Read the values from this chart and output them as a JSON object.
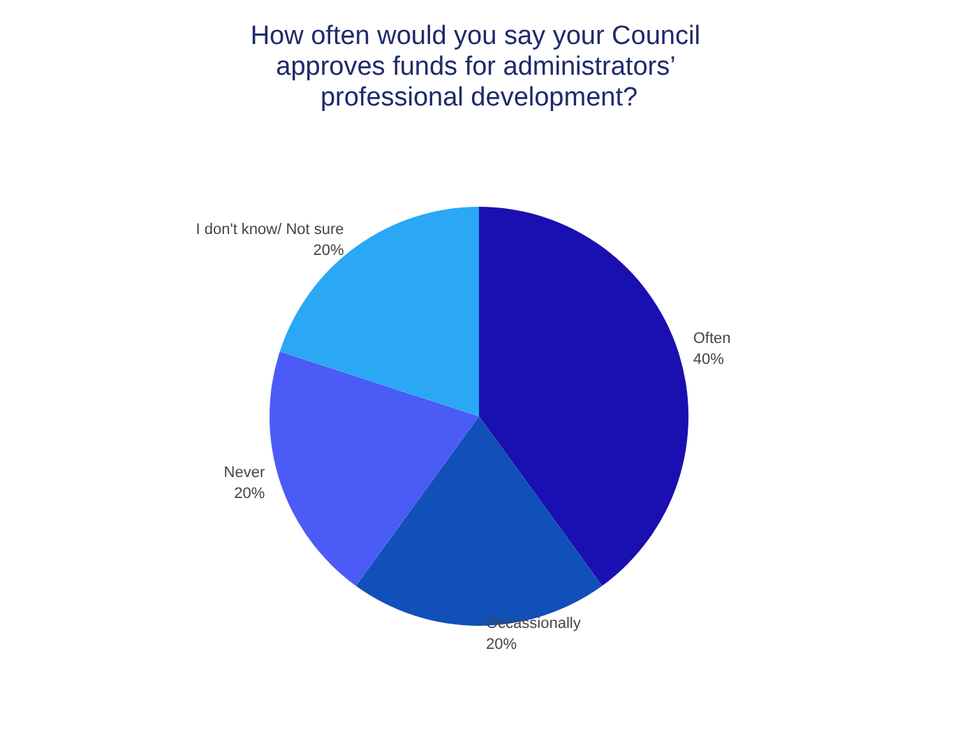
{
  "chart_data": {
    "type": "pie",
    "title": "How often would you say your Council approves funds for administrators’ professional development?",
    "categories": [
      "Often",
      "Occassionally",
      "Never",
      "I don't know/ Not sure"
    ],
    "values": [
      40,
      20,
      20,
      20
    ],
    "colors": [
      "#1a0fb0",
      "#1050b8",
      "#4a5cf5",
      "#2aa8f5"
    ],
    "value_labels": [
      "40%",
      "20%",
      "20%",
      "20%"
    ],
    "legend": false
  }
}
